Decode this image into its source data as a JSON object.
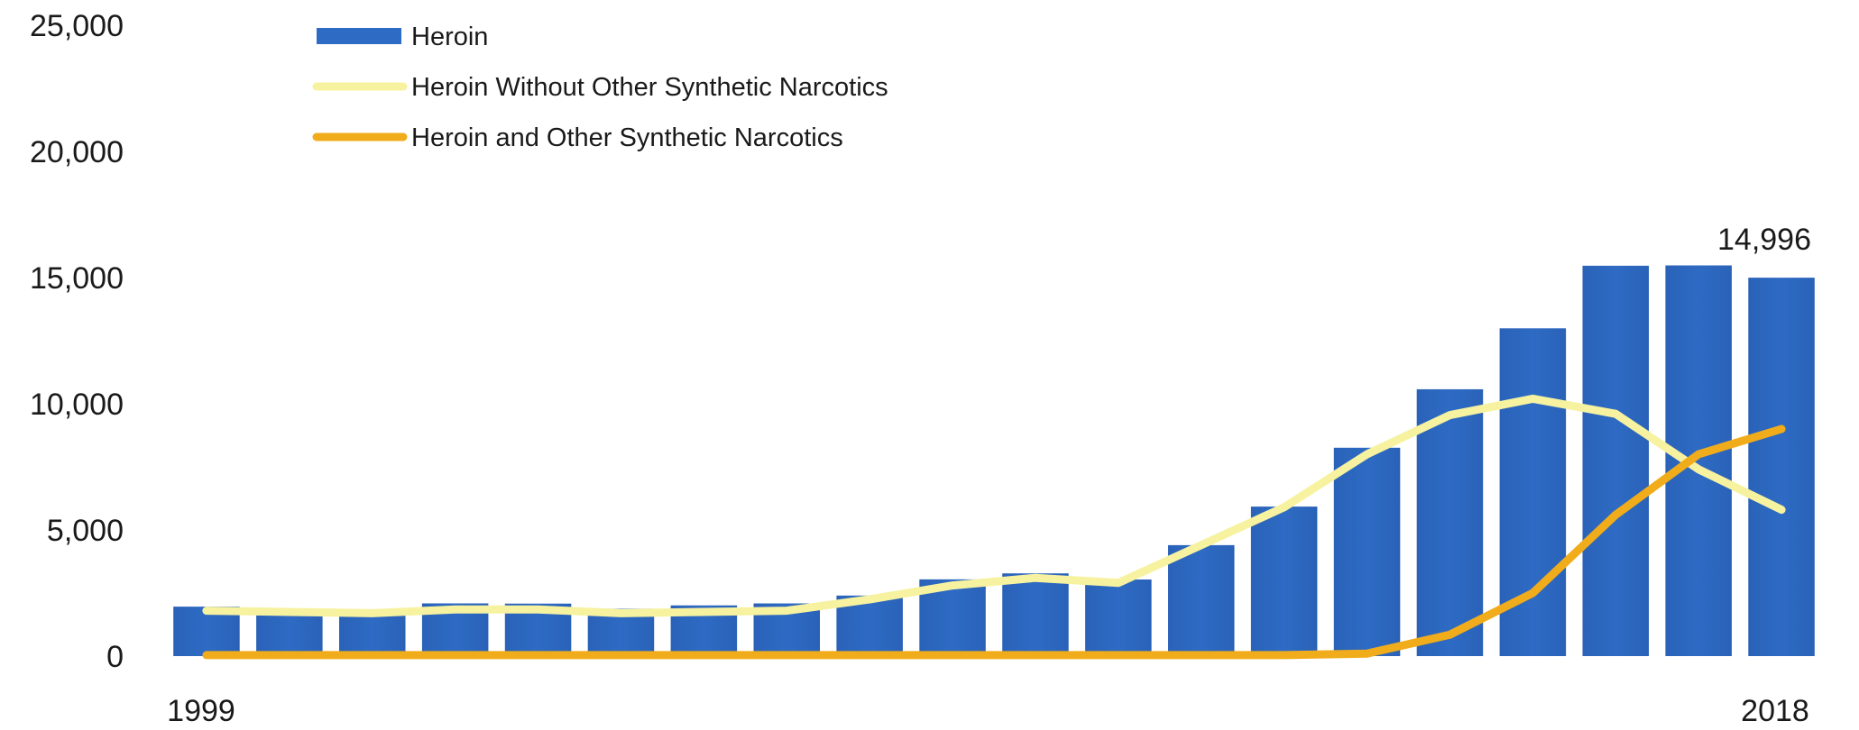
{
  "chart_data": {
    "type": "bar",
    "title": "",
    "xlabel": "",
    "ylabel": "",
    "x_first_label": "1999",
    "x_last_label": "2018",
    "x": [
      1999,
      2000,
      2001,
      2002,
      2003,
      2004,
      2005,
      2006,
      2007,
      2008,
      2009,
      2010,
      2011,
      2012,
      2013,
      2014,
      2015,
      2016,
      2017,
      2018
    ],
    "ylim": [
      0,
      25000
    ],
    "yticks": [
      0,
      5000,
      10000,
      15000,
      20000,
      25000
    ],
    "ytick_labels": [
      "0",
      "5,000",
      "10,000",
      "15,000",
      "20,000",
      "25,000"
    ],
    "grid": false,
    "legend_position": "top-left",
    "series": [
      {
        "name": "Heroin",
        "kind": "bar",
        "color": "#2e6bc4",
        "values": [
          1960,
          1842,
          1779,
          2089,
          2080,
          1878,
          2009,
          2088,
          2399,
          3041,
          3278,
          3036,
          4397,
          5925,
          8257,
          10574,
          12989,
          15469,
          15482,
          14996
        ]
      },
      {
        "name": "Heroin Without Other Synthetic Narcotics",
        "kind": "line",
        "color": "#f7f2a0",
        "values": [
          1800,
          1750,
          1700,
          1850,
          1850,
          1700,
          1750,
          1800,
          2250,
          2800,
          3100,
          2900,
          4400,
          5900,
          8000,
          9550,
          10200,
          9600,
          7400,
          5800
        ]
      },
      {
        "name": "Heroin and Other Synthetic Narcotics",
        "kind": "line",
        "color": "#f0ac1a",
        "values": [
          40,
          40,
          40,
          40,
          40,
          40,
          40,
          40,
          40,
          40,
          40,
          40,
          40,
          40,
          100,
          850,
          2500,
          5600,
          8000,
          9000
        ]
      }
    ],
    "annotations": [
      {
        "text": "14,996",
        "series": "Heroin",
        "index": 19
      }
    ]
  }
}
